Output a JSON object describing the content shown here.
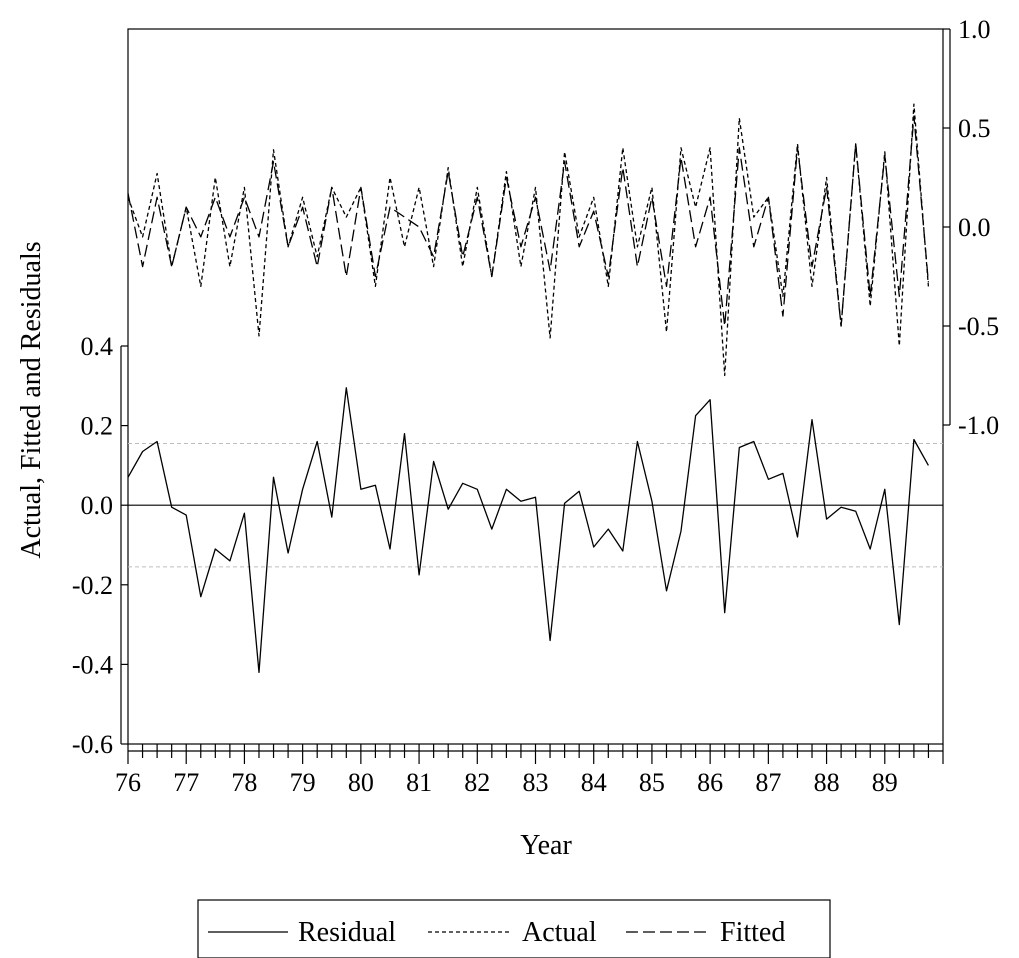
{
  "chart_data": {
    "type": "line",
    "x_start": 1976,
    "x_step": 0.25,
    "x_ticks": [
      "76",
      "77",
      "78",
      "79",
      "80",
      "81",
      "82",
      "83",
      "84",
      "85",
      "86",
      "87",
      "88",
      "89"
    ],
    "xlabel": "Year",
    "ylabel": "Actual, Fitted and Residuals",
    "left_axis": {
      "ylim": [
        -0.6,
        0.4
      ],
      "ticks": [
        "0.4",
        "0.2",
        "0.0",
        "-0.2",
        "-0.4",
        "-0.6"
      ],
      "tick_values": [
        0.4,
        0.2,
        0.0,
        -0.2,
        -0.4,
        -0.6
      ],
      "zero_line": 0.0,
      "band_lines": [
        0.155,
        -0.155
      ]
    },
    "right_axis": {
      "ylim": [
        -1.0,
        1.0
      ],
      "ticks": [
        "1.0",
        "0.5",
        "0.0",
        "-0.5",
        "-1.0"
      ],
      "tick_values": [
        1.0,
        0.5,
        0.0,
        -0.5,
        -1.0
      ]
    },
    "series": [
      {
        "name": "Residual",
        "axis": "left",
        "style": "solid",
        "values": [
          0.07,
          0.135,
          0.16,
          -0.005,
          -0.025,
          -0.23,
          -0.11,
          -0.14,
          -0.02,
          -0.42,
          0.07,
          -0.12,
          0.04,
          0.16,
          -0.03,
          0.295,
          0.04,
          0.05,
          -0.11,
          0.18,
          -0.175,
          0.11,
          -0.01,
          0.055,
          0.04,
          -0.06,
          0.04,
          0.01,
          0.02,
          -0.34,
          0.005,
          0.035,
          -0.105,
          -0.06,
          -0.115,
          0.16,
          0.01,
          -0.215,
          -0.065,
          0.225,
          0.265,
          -0.27,
          0.145,
          0.16,
          0.065,
          0.08,
          -0.08,
          0.215,
          -0.035,
          -0.005,
          -0.015,
          -0.11,
          0.04,
          -0.3,
          0.165,
          0.1
        ]
      },
      {
        "name": "Actual",
        "axis": "right",
        "style": "dashed",
        "values": [
          0.15,
          -0.05,
          0.27,
          -0.2,
          0.1,
          -0.3,
          0.25,
          -0.2,
          0.2,
          -0.55,
          0.39,
          -0.1,
          0.15,
          -0.15,
          0.2,
          0.05,
          0.2,
          -0.3,
          0.25,
          -0.1,
          0.2,
          -0.2,
          0.3,
          -0.2,
          0.2,
          -0.25,
          0.28,
          -0.2,
          0.2,
          -0.56,
          0.38,
          -0.05,
          0.15,
          -0.3,
          0.4,
          -0.1,
          0.2,
          -0.53,
          0.4,
          0.1,
          0.4,
          -0.75,
          0.55,
          0.05,
          0.15,
          -0.35,
          0.42,
          -0.3,
          0.25,
          -0.5,
          0.42,
          -0.4,
          0.38,
          -0.6,
          0.62,
          -0.3
        ]
      },
      {
        "name": "Fitted",
        "axis": "right",
        "style": "longdash",
        "values": [
          0.17,
          -0.2,
          0.15,
          -0.2,
          0.1,
          -0.05,
          0.15,
          -0.05,
          0.15,
          -0.05,
          0.33,
          -0.1,
          0.1,
          -0.2,
          0.2,
          -0.25,
          0.2,
          -0.25,
          0.1,
          0.05,
          0.0,
          -0.15,
          0.28,
          -0.15,
          0.15,
          -0.25,
          0.25,
          -0.1,
          0.15,
          -0.22,
          0.33,
          -0.1,
          0.08,
          -0.25,
          0.3,
          -0.2,
          0.15,
          -0.3,
          0.35,
          -0.1,
          0.15,
          -0.5,
          0.4,
          -0.1,
          0.15,
          -0.45,
          0.4,
          -0.2,
          0.2,
          -0.5,
          0.42,
          -0.35,
          0.36,
          -0.35,
          0.56,
          -0.28
        ]
      }
    ],
    "legend": {
      "placement": "bottom",
      "entries": [
        "Residual",
        "Actual",
        "Fitted"
      ]
    }
  }
}
